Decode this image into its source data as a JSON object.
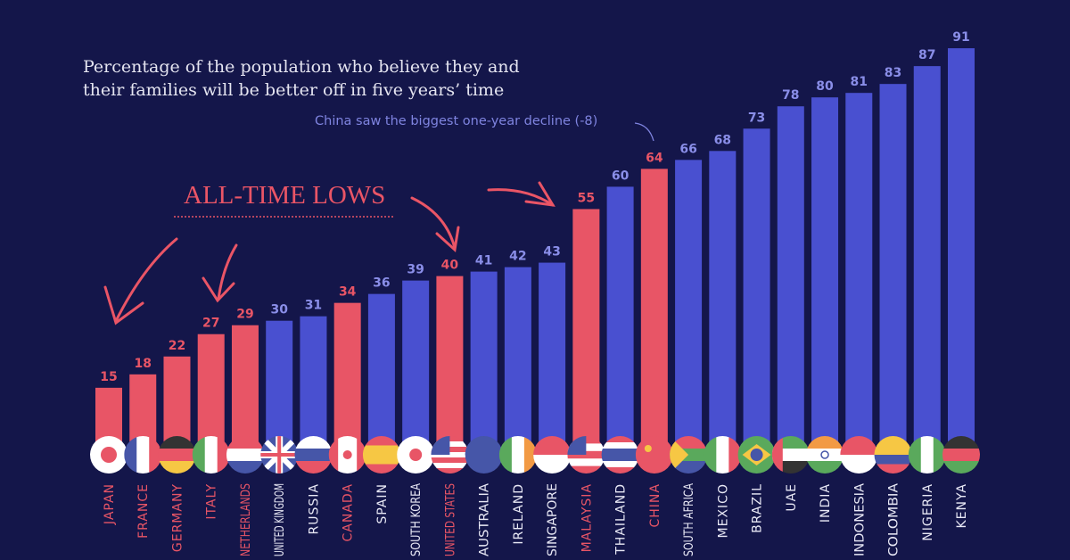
{
  "chart_data": {
    "type": "bar",
    "title": "Percentage of the population who believe they and their families will be better off in five years’ time",
    "annotations": {
      "china_note": "China saw the biggest one-year decline (-8)",
      "lows_label": "ALL-TIME LOWS"
    },
    "categories": [
      "JAPAN",
      "FRANCE",
      "GERMANY",
      "ITALY",
      "NETHERLANDS",
      "UNITED KINGDOM",
      "RUSSIA",
      "CANADA",
      "SPAIN",
      "SOUTH KOREA",
      "UNITED STATES",
      "AUSTRALIA",
      "IRELAND",
      "SINGAPORE",
      "MALAYSIA",
      "THAILAND",
      "CHINA",
      "SOUTH AFRICA",
      "MEXICO",
      "BRAZIL",
      "UAE",
      "INDIA",
      "INDONESIA",
      "COLOMBIA",
      "NIGERIA",
      "KENYA"
    ],
    "values": [
      15,
      18,
      22,
      27,
      29,
      30,
      31,
      34,
      36,
      39,
      40,
      41,
      42,
      43,
      55,
      60,
      64,
      66,
      68,
      73,
      78,
      80,
      81,
      83,
      87,
      91
    ],
    "highlighted_all_time_lows": [
      "JAPAN",
      "FRANCE",
      "GERMANY",
      "ITALY",
      "NETHERLANDS",
      "CANADA",
      "UNITED STATES",
      "MALAYSIA",
      "CHINA"
    ],
    "ylim": [
      0,
      100
    ],
    "grid": false,
    "colors": {
      "background": "#14164a",
      "bar": "#4950d0",
      "highlight": "#e85566",
      "value_label": "#8a8ee8",
      "category_label": "#e8e8f5"
    }
  }
}
